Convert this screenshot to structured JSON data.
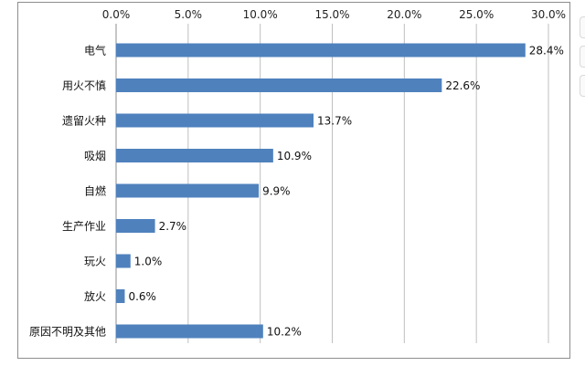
{
  "chart_data": {
    "type": "bar",
    "orientation": "horizontal",
    "title": "",
    "xlabel": "",
    "ylabel": "",
    "categories": [
      "电气",
      "用火不慎",
      "遗留火种",
      "吸烟",
      "自燃",
      "生产作业",
      "玩火",
      "放火",
      "原因不明及其他"
    ],
    "values": [
      28.4,
      22.6,
      13.7,
      10.9,
      9.9,
      2.7,
      1.0,
      0.6,
      10.2
    ],
    "value_labels": [
      "28.4%",
      "22.6%",
      "13.7%",
      "10.9%",
      "9.9%",
      "2.7%",
      "1.0%",
      "0.6%",
      "10.2%"
    ],
    "xlim": [
      0,
      30
    ],
    "x_ticks": [
      0,
      5,
      10,
      15,
      20,
      25,
      30
    ],
    "x_tick_labels": [
      "0.0%",
      "5.0%",
      "10.0%",
      "15.0%",
      "20.0%",
      "25.0%",
      "30.0%"
    ],
    "x_axis_position": "top",
    "grid": "vertical",
    "legend": "none",
    "bar_color": "#4f81bd",
    "grid_color": "#bfbfbf",
    "frame_color": "#8d8d8d"
  }
}
